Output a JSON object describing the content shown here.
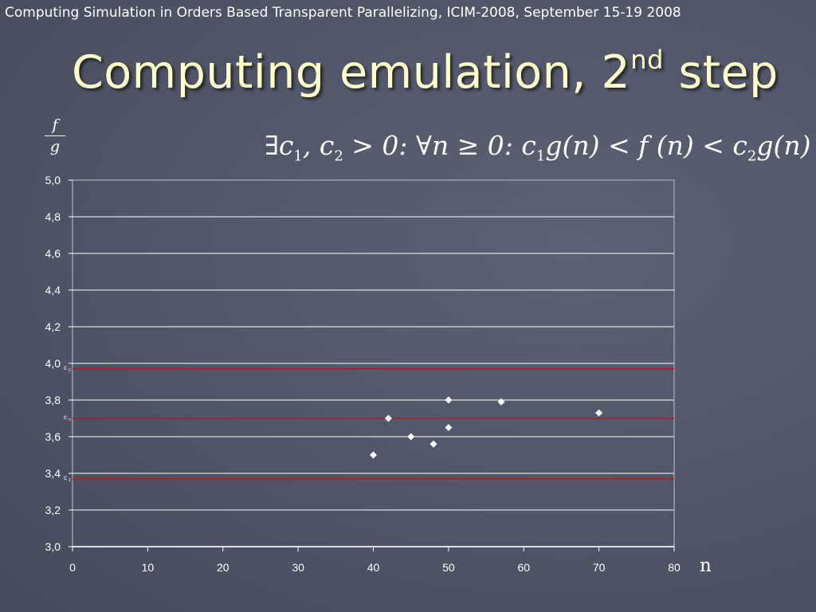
{
  "slide": {
    "header": "Computing Simulation in Orders Based Transparent Parallelizing, ICIM-2008, September 15-19 2008",
    "title_main": "Computing emulation, 2",
    "title_sup": "nd",
    "title_end": " step",
    "formula": {
      "part1": "∃c",
      "sub1": "1",
      "part2": ", c",
      "sub2": "2",
      "part3": " > 0: ∀n ≥ 0: c",
      "sub3": "1",
      "part4": "g(n) < f (n) < c",
      "sub4": "2",
      "part5": "g(n)"
    },
    "y_axis_fraction": {
      "numerator": "f",
      "denominator": "g"
    },
    "x_axis_letter": "n",
    "colors": {
      "title": "#ffffc8",
      "background": "#50566a",
      "reference_lines": "#b01c1c",
      "grid": "#ffffff"
    }
  },
  "chart_data": {
    "type": "scatter",
    "ylim": [
      3.0,
      5.0
    ],
    "xlim": [
      0,
      80
    ],
    "yticks": [
      "5,0",
      "4,8",
      "4,6",
      "4,4",
      "4,2",
      "4,0",
      "3,8",
      "3,6",
      "3,4",
      "3,2",
      "3,0"
    ],
    "xticks": [
      "0",
      "10",
      "20",
      "30",
      "40",
      "50",
      "60",
      "70",
      "80"
    ],
    "grid": true,
    "marker": "diamond",
    "points": [
      {
        "x": 40,
        "y": 3.5
      },
      {
        "x": 42,
        "y": 3.7
      },
      {
        "x": 45,
        "y": 3.6
      },
      {
        "x": 48,
        "y": 3.56
      },
      {
        "x": 50,
        "y": 3.8
      },
      {
        "x": 50,
        "y": 3.65
      },
      {
        "x": 57,
        "y": 3.79
      },
      {
        "x": 70,
        "y": 3.73
      }
    ],
    "reference_lines": [
      {
        "label": "c2",
        "y": 3.97
      },
      {
        "label": "cn",
        "y": 3.7
      },
      {
        "label": "c1",
        "y": 3.37
      }
    ]
  }
}
